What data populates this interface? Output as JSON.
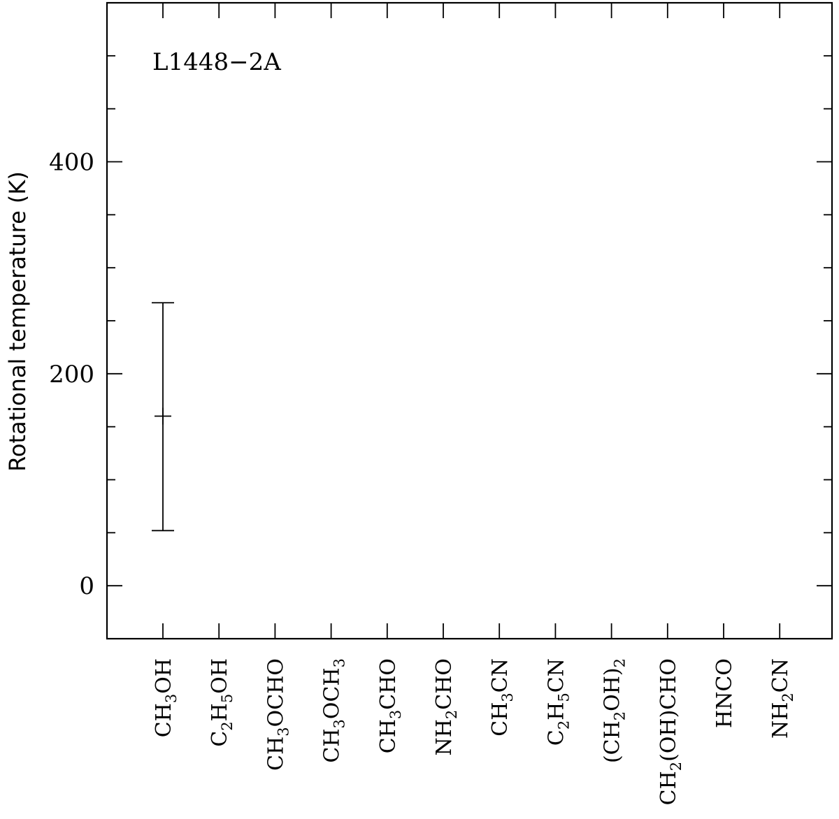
{
  "chart_data": {
    "type": "scatter",
    "title": "L1448−2A",
    "ylabel": "Rotational temperature (K)",
    "xlabel": "",
    "ylim": [
      -50,
      550
    ],
    "y_major_ticks": [
      0,
      200,
      400
    ],
    "y_minor_step": 50,
    "grid": false,
    "categories": [
      {
        "label": "CH₃OH",
        "parts": [
          [
            "CH",
            ""
          ],
          [
            "3",
            "sub"
          ],
          [
            "OH",
            ""
          ]
        ]
      },
      {
        "label": "C₂H₅OH",
        "parts": [
          [
            "C",
            ""
          ],
          [
            "2",
            "sub"
          ],
          [
            "H",
            ""
          ],
          [
            "5",
            "sub"
          ],
          [
            "OH",
            ""
          ]
        ]
      },
      {
        "label": "CH₃OCHO",
        "parts": [
          [
            "CH",
            ""
          ],
          [
            "3",
            "sub"
          ],
          [
            "OCHO",
            ""
          ]
        ]
      },
      {
        "label": "CH₃OCH₃",
        "parts": [
          [
            "CH",
            ""
          ],
          [
            "3",
            "sub"
          ],
          [
            "OCH",
            ""
          ],
          [
            "3",
            "sub"
          ]
        ]
      },
      {
        "label": "CH₃CHO",
        "parts": [
          [
            "CH",
            ""
          ],
          [
            "3",
            "sub"
          ],
          [
            "CHO",
            ""
          ]
        ]
      },
      {
        "label": "NH₂CHO",
        "parts": [
          [
            "NH",
            ""
          ],
          [
            "2",
            "sub"
          ],
          [
            "CHO",
            ""
          ]
        ]
      },
      {
        "label": "CH₃CN",
        "parts": [
          [
            "CH",
            ""
          ],
          [
            "3",
            "sub"
          ],
          [
            "CN",
            ""
          ]
        ]
      },
      {
        "label": "C₂H₅CN",
        "parts": [
          [
            "C",
            ""
          ],
          [
            "2",
            "sub"
          ],
          [
            "H",
            ""
          ],
          [
            "5",
            "sub"
          ],
          [
            "CN",
            ""
          ]
        ]
      },
      {
        "label": "(CH₂OH)₂",
        "parts": [
          [
            "(CH",
            ""
          ],
          [
            "2",
            "sub"
          ],
          [
            "OH)",
            ""
          ],
          [
            "2",
            "sub"
          ]
        ]
      },
      {
        "label": "CH₂(OH)CHO",
        "parts": [
          [
            "CH",
            ""
          ],
          [
            "2",
            "sub"
          ],
          [
            "(OH)CHO",
            ""
          ]
        ]
      },
      {
        "label": "HNCO",
        "parts": [
          [
            "HNCO",
            ""
          ]
        ]
      },
      {
        "label": "NH₂CN",
        "parts": [
          [
            "NH",
            ""
          ],
          [
            "2",
            "sub"
          ],
          [
            "CN",
            ""
          ]
        ]
      }
    ],
    "points": [
      {
        "category": "CH₃OH",
        "value": 160,
        "err_low": 108,
        "err_high": 107
      }
    ]
  }
}
